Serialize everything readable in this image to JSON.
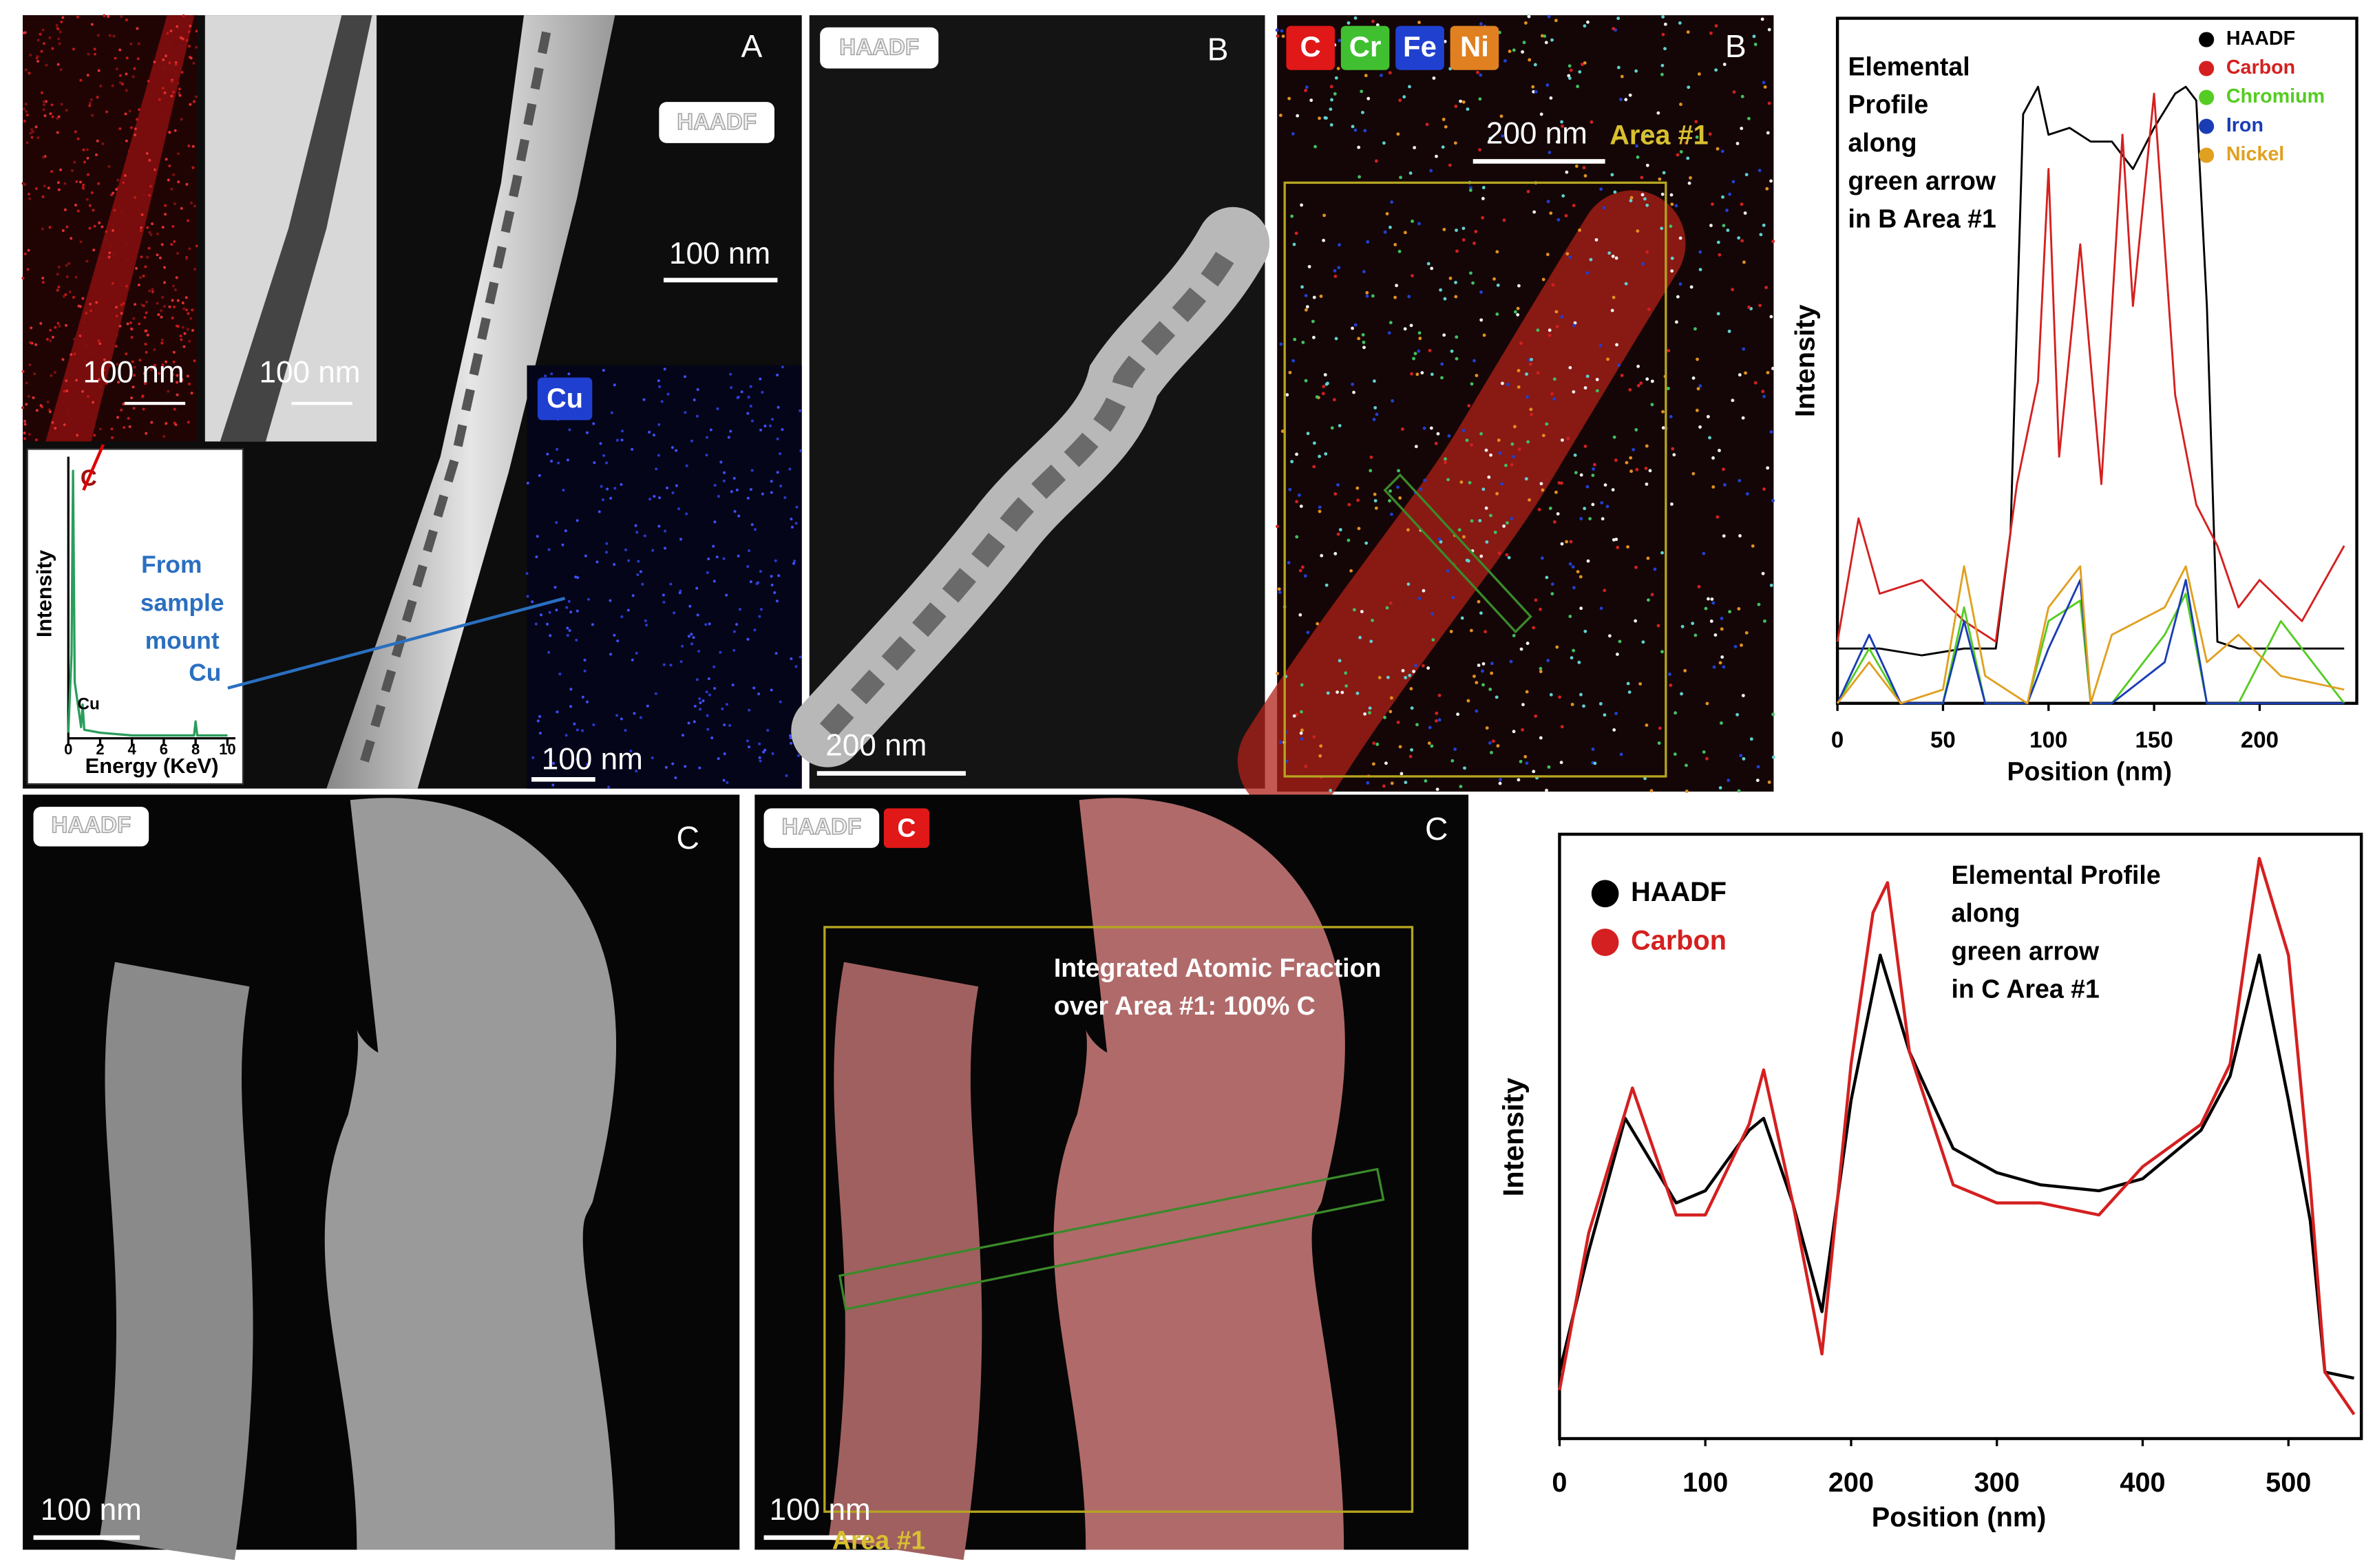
{
  "panels": {
    "a": {
      "label": "A",
      "haadf": "HAADF",
      "scale_main": "100 nm",
      "scale_carbon_map": "100 nm",
      "scale_tem": "100 nm",
      "cu_map": "Cu",
      "scale_cu": "100 nm"
    },
    "b_haadf": {
      "label": "B",
      "haadf": "HAADF",
      "scale": "200 nm"
    },
    "b_map": {
      "label": "B",
      "elements": [
        "C",
        "Cr",
        "Fe",
        "Ni"
      ],
      "scale": "200 nm",
      "area": "Area #1"
    },
    "c_haadf": {
      "label": "C",
      "haadf": "HAADF",
      "scale": "100 nm"
    },
    "c_map": {
      "label": "C",
      "haadf": "HAADF",
      "element": "C",
      "annotation": [
        "Integrated Atomic Fraction",
        "over Area #1: 100% C"
      ],
      "scale": "100 nm",
      "area": "Area #1"
    }
  },
  "chart_data": [
    {
      "type": "line",
      "xlabel": "Energy (KeV)",
      "ylabel": "Intensity",
      "annotations": [
        "C",
        "Cu",
        "From",
        "sample",
        "mount",
        "Cu"
      ],
      "xlim": [
        0,
        10.5
      ],
      "ylim": [
        0,
        100
      ],
      "xticks": [
        0,
        2,
        4,
        6,
        8,
        10
      ],
      "series": [
        {
          "name": null,
          "color": "#2a9d5c",
          "x": [
            0,
            0.2,
            0.3,
            0.4,
            0.8,
            0.9,
            1.0,
            2,
            4,
            6,
            7.9,
            8.0,
            8.1,
            10
          ],
          "values": [
            2,
            30,
            95,
            20,
            4,
            12,
            3,
            2,
            1,
            1,
            1,
            6,
            1,
            1
          ]
        }
      ]
    },
    {
      "type": "line",
      "xlabel": "Position (nm)",
      "ylabel": "Intensity",
      "annotation": [
        "Elemental",
        "Profile",
        "along",
        "green arrow",
        "in B Area #1"
      ],
      "xlim": [
        0,
        246
      ],
      "ylim": [
        0,
        100
      ],
      "xticks": [
        0,
        50,
        100,
        150,
        200
      ],
      "series": [
        {
          "name": "HAADF",
          "color": "#000000",
          "x": [
            0,
            20,
            40,
            60,
            75,
            82,
            88,
            95,
            100,
            110,
            120,
            130,
            140,
            150,
            160,
            165,
            170,
            175,
            180,
            190,
            200,
            220,
            240
          ],
          "values": [
            8,
            8,
            7,
            8,
            8,
            25,
            86,
            90,
            83,
            84,
            82,
            82,
            78,
            84,
            89,
            90,
            88,
            58,
            9,
            8,
            8,
            8,
            8
          ]
        },
        {
          "name": "Carbon",
          "color": "#d42020",
          "x": [
            0,
            10,
            20,
            40,
            60,
            75,
            85,
            95,
            100,
            105,
            115,
            125,
            135,
            140,
            150,
            160,
            170,
            180,
            190,
            200,
            220,
            240
          ],
          "values": [
            9,
            27,
            16,
            18,
            12,
            9,
            32,
            47,
            78,
            36,
            67,
            32,
            83,
            58,
            89,
            45,
            29,
            23,
            14,
            18,
            12,
            23
          ]
        },
        {
          "name": "Chromium",
          "color": "#55cc22",
          "x": [
            0,
            15,
            30,
            50,
            60,
            70,
            90,
            100,
            115,
            120,
            130,
            155,
            165,
            175,
            190,
            210,
            240
          ],
          "values": [
            0,
            8,
            0,
            0,
            14,
            0,
            0,
            12,
            15,
            0,
            0,
            10,
            16,
            0,
            0,
            12,
            0
          ]
        },
        {
          "name": "Iron",
          "color": "#1a3db5",
          "x": [
            0,
            15,
            30,
            50,
            60,
            70,
            90,
            100,
            115,
            120,
            130,
            155,
            165,
            175,
            190,
            210,
            240
          ],
          "values": [
            0,
            10,
            0,
            0,
            12,
            0,
            0,
            8,
            18,
            0,
            0,
            6,
            18,
            0,
            0,
            0,
            0
          ]
        },
        {
          "name": "Nickel",
          "color": "#e0a020",
          "x": [
            0,
            15,
            30,
            50,
            60,
            70,
            90,
            100,
            115,
            120,
            130,
            155,
            165,
            175,
            190,
            210,
            240
          ],
          "values": [
            0,
            6,
            0,
            2,
            20,
            4,
            0,
            14,
            20,
            0,
            10,
            14,
            20,
            6,
            10,
            4,
            2
          ]
        }
      ]
    },
    {
      "type": "line",
      "xlabel": "Position (nm)",
      "ylabel": "Intensity",
      "annotation": [
        "Elemental Profile",
        "along",
        "green arrow",
        "in C Area #1"
      ],
      "xlim": [
        0,
        550
      ],
      "ylim": [
        0,
        100
      ],
      "xticks": [
        0,
        100,
        200,
        300,
        400,
        500
      ],
      "series": [
        {
          "name": "HAADF",
          "color": "#000000",
          "x": [
            0,
            20,
            45,
            80,
            100,
            130,
            140,
            160,
            180,
            200,
            220,
            240,
            270,
            300,
            330,
            370,
            400,
            440,
            460,
            480,
            500,
            515,
            525,
            545
          ],
          "values": [
            11,
            31,
            53,
            39,
            41,
            51,
            53,
            39,
            21,
            56,
            80,
            64,
            48,
            44,
            42,
            41,
            43,
            51,
            60,
            80,
            56,
            36,
            11,
            10
          ]
        },
        {
          "name": "Carbon",
          "color": "#d42020",
          "x": [
            0,
            20,
            50,
            80,
            100,
            130,
            140,
            160,
            180,
            200,
            215,
            225,
            240,
            270,
            300,
            330,
            370,
            400,
            440,
            460,
            480,
            500,
            515,
            525,
            545
          ],
          "values": [
            8,
            34,
            58,
            37,
            37,
            52,
            61,
            39,
            14,
            62,
            87,
            92,
            64,
            42,
            39,
            39,
            37,
            45,
            52,
            62,
            96,
            80,
            42,
            11,
            4
          ]
        }
      ]
    }
  ]
}
